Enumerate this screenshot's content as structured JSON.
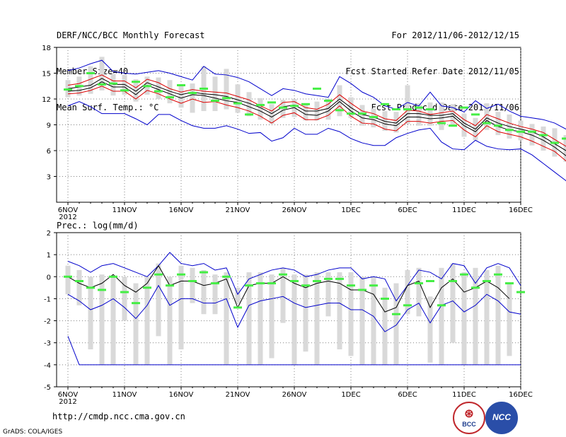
{
  "header": {
    "title": "DERF/NCC/BCC Monthly Forecast",
    "member_size": "Member Size=40",
    "variable1": "Mean Surf. Temp.: °C",
    "period": "For 2012/11/06-2012/12/15",
    "refer_date": "Fcst Started Refer Date 2012/11/05",
    "produced_date": "Fcst Produced Date 2012/11/06"
  },
  "footer": {
    "url": "http://cmdp.ncc.cma.gov.cn",
    "grads": "GrADS: COLA/IGES",
    "logo_bcc": "BCC",
    "logo_ncc": "NCC"
  },
  "colors": {
    "box": "#d9d9d9",
    "mean": "#44ee44",
    "spread": "#0000cc",
    "bound": "#dd0000",
    "center": "#000000",
    "grid": "#808080"
  },
  "x_ticks": [
    "6NOV",
    "11NOV",
    "16NOV",
    "21NOV",
    "26NOV",
    "1DEC",
    "6DEC",
    "11DEC",
    "16DEC"
  ],
  "x_year": "2012",
  "chart_data": [
    {
      "type": "line",
      "title": "Mean Surf. Temp.: °C",
      "ylim": [
        0,
        18
      ],
      "yticks": [
        3,
        6,
        9,
        12,
        15,
        18
      ],
      "days": 40,
      "series": [
        {
          "name": "upper",
          "values": [
            15.3,
            15.6,
            16.1,
            16.5,
            15.2,
            15.0,
            14.9,
            15.1,
            15.3,
            15.0,
            14.6,
            14.2,
            15.8,
            14.9,
            14.8,
            14.5,
            14.0,
            13.2,
            12.4,
            13.2,
            13.0,
            12.6,
            12.4,
            12.2,
            14.6,
            13.8,
            12.8,
            12.2,
            11.2,
            10.8,
            11.6,
            11.2,
            12.8,
            11.2,
            11.0,
            10.5,
            11.8,
            10.9,
            11.4,
            10.6,
            10.0,
            9.8,
            9.6,
            9.2,
            8.5,
            8.5
          ]
        },
        {
          "name": "p75",
          "values": [
            13.6,
            13.8,
            14.3,
            14.8,
            14.1,
            14.1,
            13.3,
            14.3,
            13.9,
            13.2,
            12.8,
            13.1,
            12.9,
            12.8,
            12.7,
            12.3,
            11.9,
            11.2,
            10.6,
            11.6,
            11.7,
            11.0,
            10.8,
            11.4,
            12.5,
            11.5,
            10.6,
            10.3,
            9.7,
            9.5,
            10.7,
            10.6,
            10.2,
            10.4,
            10.6,
            9.6,
            8.9,
            10.2,
            9.7,
            9.2,
            8.8,
            8.5,
            8.1,
            7.3,
            6.5,
            7.3
          ]
        },
        {
          "name": "mean",
          "values": [
            13.2,
            13.4,
            13.6,
            14.4,
            13.7,
            13.7,
            12.9,
            13.9,
            13.4,
            12.9,
            12.5,
            12.8,
            12.6,
            12.5,
            12.3,
            11.9,
            11.5,
            11.0,
            10.3,
            11.1,
            11.3,
            10.6,
            10.6,
            10.9,
            12.0,
            11.0,
            10.2,
            9.9,
            9.4,
            9.2,
            10.3,
            10.3,
            10.1,
            10.1,
            10.3,
            9.2,
            8.5,
            9.8,
            9.2,
            8.8,
            8.5,
            8.2,
            7.6,
            6.8,
            6.0,
            6.8
          ]
        },
        {
          "name": "median",
          "values": [
            12.9,
            13.0,
            13.3,
            14.0,
            13.4,
            13.4,
            12.5,
            13.6,
            13.1,
            12.6,
            12.1,
            12.5,
            12.4,
            12.1,
            11.8,
            11.6,
            11.1,
            10.6,
            9.9,
            10.7,
            11.0,
            10.2,
            10.1,
            10.6,
            11.7,
            10.6,
            9.8,
            9.6,
            9.1,
            8.9,
            9.9,
            9.9,
            9.7,
            9.8,
            10.0,
            8.9,
            8.2,
            9.5,
            8.8,
            8.4,
            8.2,
            7.8,
            7.2,
            6.4,
            5.4,
            6.5
          ]
        },
        {
          "name": "p25",
          "values": [
            12.6,
            12.7,
            13.0,
            13.5,
            12.9,
            12.9,
            12.0,
            13.0,
            12.6,
            12.0,
            11.5,
            12.0,
            11.6,
            11.7,
            11.3,
            11.0,
            10.6,
            10.0,
            9.2,
            10.1,
            10.4,
            9.6,
            9.6,
            10.1,
            11.2,
            10.0,
            9.2,
            9.1,
            8.5,
            8.3,
            9.4,
            9.4,
            9.2,
            9.4,
            9.5,
            8.4,
            7.6,
            8.9,
            8.2,
            7.9,
            7.6,
            7.1,
            6.5,
            5.9,
            4.8,
            6.0
          ]
        },
        {
          "name": "lower",
          "values": [
            11.2,
            11.7,
            11.1,
            10.3,
            10.3,
            10.3,
            9.7,
            9.0,
            10.2,
            10.2,
            9.5,
            8.9,
            8.6,
            8.6,
            8.9,
            8.5,
            8.0,
            8.1,
            7.1,
            7.5,
            8.6,
            7.9,
            7.9,
            8.6,
            8.2,
            7.4,
            6.9,
            6.6,
            6.6,
            7.5,
            8.0,
            8.4,
            8.6,
            7.0,
            6.2,
            6.1,
            7.2,
            6.5,
            6.2,
            6.1,
            6.2,
            5.5,
            4.5,
            3.5,
            2.5,
            4.2
          ]
        },
        {
          "name": "ensemble_mean",
          "values": [
            13.1,
            13.5,
            15.0,
            13.7,
            13.8,
            13.0,
            14.0,
            13.5,
            12.9,
            12.2,
            13.6,
            12.7,
            13.2,
            11.8,
            12.1,
            11.5,
            10.2,
            11.3,
            11.6,
            11.0,
            11.2,
            11.4,
            13.2,
            11.8,
            10.7,
            10.3,
            10.3,
            9.9,
            11.4,
            10.8,
            10.8,
            11.0,
            10.8,
            9.2,
            8.9,
            11.0,
            10.2,
            9.2,
            8.9,
            8.4,
            8.2,
            8.2,
            7.8,
            6.9,
            7.4
          ]
        },
        {
          "name": "box_low",
          "values": [
            12.2,
            12.4,
            12.6,
            13.0,
            12.4,
            12.5,
            11.7,
            12.5,
            12.0,
            11.5,
            11.0,
            10.4,
            10.6,
            10.6,
            10.8,
            10.4,
            10.0,
            9.6,
            9.1,
            9.8,
            9.9,
            9.5,
            9.5,
            9.6,
            10.0,
            9.8,
            8.9,
            8.7,
            8.3,
            8.1,
            9.1,
            8.9,
            8.9,
            8.4,
            8.8,
            7.6,
            7.2,
            8.4,
            7.8,
            7.4,
            7.2,
            6.6,
            6.0,
            5.3,
            4.7,
            5.3
          ]
        },
        {
          "name": "box_high",
          "values": [
            14.2,
            14.6,
            15.8,
            16.9,
            14.9,
            14.8,
            14.3,
            14.6,
            14.5,
            14.2,
            13.6,
            13.8,
            15.8,
            14.6,
            15.5,
            13.7,
            12.8,
            12.1,
            11.4,
            11.9,
            12.0,
            11.5,
            11.7,
            12.0,
            13.6,
            12.2,
            11.3,
            10.9,
            10.6,
            10.5,
            13.6,
            11.5,
            11.6,
            11.6,
            11.4,
            10.3,
            9.8,
            11.5,
            10.5,
            10.2,
            9.5,
            9.1,
            8.8,
            8.6,
            7.8,
            8.2
          ]
        }
      ],
      "x_axis_ticks": [
        "6NOV",
        "11NOV",
        "16NOV",
        "21NOV",
        "26NOV",
        "1DEC",
        "6DEC",
        "11DEC",
        "16DEC"
      ]
    },
    {
      "type": "line",
      "title": "Prec.: log(mm/d)",
      "ylim": [
        -5,
        2
      ],
      "yticks": [
        -5,
        -4,
        -3,
        -2,
        -1,
        0,
        1,
        2
      ],
      "days": 40,
      "series": [
        {
          "name": "upper",
          "values": [
            0.7,
            0.5,
            0.2,
            0.5,
            0.6,
            0.4,
            0.2,
            0.0,
            0.5,
            1.1,
            0.6,
            0.5,
            0.6,
            0.3,
            0.4,
            -0.8,
            -0.1,
            0.1,
            0.3,
            0.4,
            0.3,
            0.0,
            0.1,
            0.3,
            0.4,
            0.4,
            -0.1,
            0.0,
            -0.1,
            -1.1,
            -0.4,
            0.3,
            0.2,
            -0.1,
            0.6,
            0.5,
            -0.3,
            0.4,
            0.6,
            0.4,
            -0.4
          ]
        },
        {
          "name": "median",
          "values": [
            0.0,
            -0.3,
            -0.5,
            -0.3,
            0.1,
            -0.4,
            -0.7,
            -0.3,
            0.5,
            -0.4,
            -0.2,
            -0.2,
            -0.4,
            -0.3,
            -0.1,
            -1.4,
            -0.4,
            -0.3,
            -0.3,
            0.0,
            -0.3,
            -0.5,
            -0.3,
            -0.2,
            -0.3,
            -0.6,
            -0.6,
            -0.8,
            -1.6,
            -1.4,
            -0.4,
            -0.2,
            -1.4,
            -0.5,
            -0.1,
            -0.7,
            -0.5,
            -0.2,
            -0.5,
            -1.0
          ]
        },
        {
          "name": "lower",
          "values": [
            -0.8,
            -1.1,
            -1.5,
            -1.3,
            -1.0,
            -1.4,
            -1.9,
            -1.3,
            -0.4,
            -1.3,
            -1.0,
            -1.0,
            -1.2,
            -1.2,
            -1.0,
            -2.3,
            -1.3,
            -1.1,
            -1.0,
            -0.9,
            -1.2,
            -1.4,
            -1.3,
            -1.2,
            -1.2,
            -1.5,
            -1.5,
            -1.8,
            -2.5,
            -2.2,
            -1.5,
            -1.2,
            -2.1,
            -1.3,
            -1.1,
            -1.6,
            -1.3,
            -0.8,
            -1.1,
            -1.6,
            -1.7
          ]
        },
        {
          "name": "bottom",
          "values": [
            -2.7,
            -4.0,
            -4.0,
            -4.0,
            -4.0,
            -4.0,
            -4.0,
            -4.0,
            -4.0,
            -4.0,
            -4.0,
            -4.0,
            -4.0,
            -4.0,
            -4.0,
            -4.0,
            -4.0,
            -4.0,
            -4.0,
            -4.0,
            -4.0,
            -4.0,
            -4.0,
            -4.0,
            -4.0,
            -4.0,
            -4.0,
            -4.0,
            -4.0,
            -4.0,
            -4.0,
            -4.0,
            -4.0,
            -4.0,
            -4.0,
            -4.0,
            -4.0,
            -4.0,
            -4.0,
            -4.0,
            -4.0
          ]
        },
        {
          "name": "ensemble_mean",
          "values": [
            0.0,
            -0.2,
            -0.5,
            -0.6,
            0.0,
            -0.7,
            -1.2,
            -0.5,
            0.1,
            -0.4,
            0.1,
            -0.2,
            0.2,
            -0.3,
            0.0,
            -1.4,
            -0.4,
            -0.3,
            -0.3,
            0.1,
            -0.2,
            -0.4,
            -0.2,
            -0.1,
            -0.1,
            -0.4,
            -0.6,
            -0.4,
            -1.0,
            -1.7,
            -1.3,
            -0.3,
            -0.2,
            -1.3,
            -0.2,
            0.1,
            -0.5,
            -0.2,
            0.1,
            -0.3,
            -0.7
          ]
        },
        {
          "name": "box_low",
          "values": [
            -0.8,
            -1.3,
            -3.3,
            -4.0,
            -4.0,
            -2.0,
            -4.0,
            -4.0,
            -2.7,
            -4.0,
            -3.3,
            -1.2,
            -1.7,
            -1.7,
            -4.0,
            -1.2,
            -4.0,
            -4.0,
            -3.7,
            -2.1,
            -4.0,
            -3.4,
            -4.0,
            -1.8,
            -3.3,
            -3.6,
            -4.0,
            -4.0,
            -4.0,
            -4.0,
            -1.7,
            -1.8,
            -3.9,
            -4.0,
            -3.0,
            -4.0,
            -4.0,
            -4.0,
            -4.0,
            -3.6
          ]
        },
        {
          "name": "box_high",
          "values": [
            0.5,
            0.3,
            0.0,
            0.1,
            0.0,
            0.0,
            -0.3,
            0.0,
            0.6,
            0.0,
            0.5,
            0.4,
            0.3,
            0.1,
            0.2,
            -0.5,
            0.2,
            0.2,
            0.1,
            0.4,
            0.1,
            0.1,
            0.2,
            0.2,
            0.2,
            0.2,
            0.0,
            0.0,
            -0.5,
            -0.3,
            0.3,
            0.4,
            -0.9,
            0.4,
            0.6,
            0.2,
            0.4,
            0.3,
            0.5,
            -0.3
          ]
        }
      ],
      "x_axis_ticks": [
        "6NOV",
        "11NOV",
        "16NOV",
        "21NOV",
        "26NOV",
        "1DEC",
        "6DEC",
        "11DEC",
        "16DEC"
      ]
    }
  ]
}
